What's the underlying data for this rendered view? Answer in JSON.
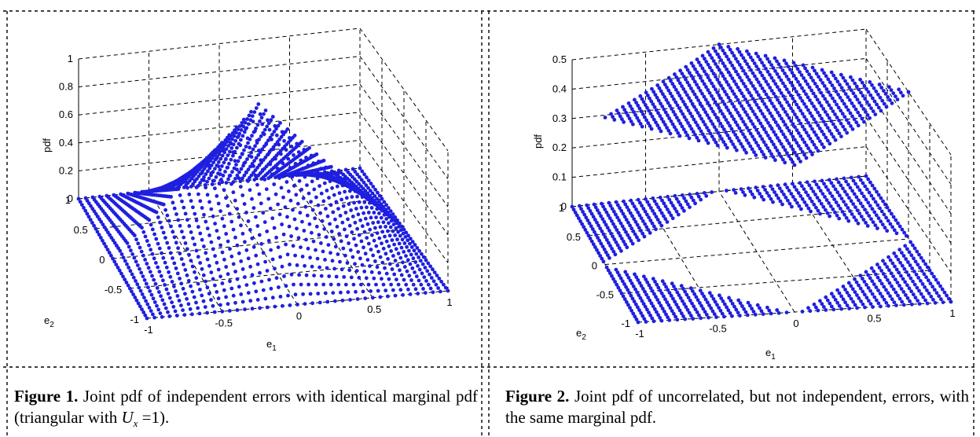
{
  "figure1": {
    "z_ticks": [
      "0",
      "0.2",
      "0.4",
      "0.6",
      "0.8",
      "1"
    ],
    "e2_ticks": [
      "1",
      "0.5",
      "0",
      "-0.5",
      "-1"
    ],
    "e1_ticks": [
      "-1",
      "-0.5",
      "0",
      "0.5",
      "1"
    ],
    "zlabel": "pdf",
    "ylabel_base": "e",
    "ylabel_sub": "2",
    "xlabel_base": "e",
    "xlabel_sub": "1",
    "marker_color": "#1f1fe0",
    "caption_label": "Figure 1.",
    "caption_text": " Joint pdf of independent errors with identical marginal pdf (triangular with ",
    "caption_symbol": "U",
    "caption_symbol_sub": "x",
    "caption_tail": " =1)."
  },
  "figure2": {
    "z_ticks": [
      "0",
      "0.1",
      "0.2",
      "0.3",
      "0.4",
      "0.5"
    ],
    "e2_ticks": [
      "1",
      "0.5",
      "0",
      "-0.5",
      "-1"
    ],
    "e1_ticks": [
      "-1",
      "-0.5",
      "0",
      "0.5",
      "1"
    ],
    "zlabel": "pdf",
    "ylabel_base": "e",
    "ylabel_sub": "2",
    "xlabel_base": "e",
    "xlabel_sub": "1",
    "marker_color": "#1f1fe0",
    "caption_label": "Figure 2.",
    "caption_text": " Joint pdf of uncorrelated, but not independent, errors, with the same marginal pdf."
  },
  "chart_data": [
    {
      "type": "scatter",
      "subtype": "3d-surface-points",
      "title": "",
      "xlabel": "e1",
      "ylabel": "e2",
      "zlabel": "pdf",
      "xlim": [
        -1,
        1
      ],
      "ylim": [
        -1,
        1
      ],
      "zlim": [
        0,
        1
      ],
      "z_function": "(1-|e1|)*(1-|e2|)",
      "grid_step": 0.05,
      "peak": {
        "x": 0,
        "y": 0,
        "z": 1
      }
    },
    {
      "type": "scatter",
      "subtype": "3d-surface-points",
      "title": "",
      "xlabel": "e1",
      "ylabel": "e2",
      "zlabel": "pdf",
      "xlim": [
        -1,
        1
      ],
      "ylim": [
        -1,
        1
      ],
      "zlim": [
        0,
        0.5
      ],
      "z_function": "0.5 if |e1|+|e2|<=1 else 0",
      "grid_step": 0.05,
      "levels": [
        0,
        0.5
      ]
    }
  ]
}
